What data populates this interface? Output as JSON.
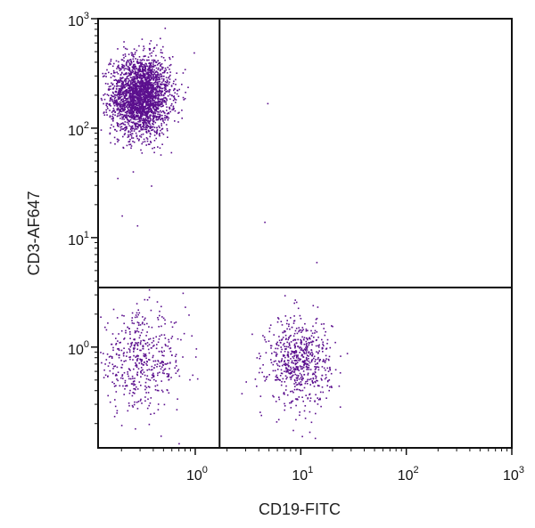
{
  "chart_data": {
    "type": "scatter",
    "title": "",
    "xlabel": "CD19-FITC",
    "ylabel": "CD3-AF647",
    "x_scale": "log",
    "y_scale": "log",
    "xlim": [
      0.12,
      1000
    ],
    "ylim": [
      0.12,
      1000
    ],
    "x_ticks": [
      {
        "value": 1,
        "base": "10",
        "exp": "0"
      },
      {
        "value": 10,
        "base": "10",
        "exp": "1"
      },
      {
        "value": 100,
        "base": "10",
        "exp": "2"
      },
      {
        "value": 1000,
        "base": "10",
        "exp": "3"
      }
    ],
    "y_ticks": [
      {
        "value": 1,
        "base": "10",
        "exp": "0"
      },
      {
        "value": 10,
        "base": "10",
        "exp": "1"
      },
      {
        "value": 100,
        "base": "10",
        "exp": "2"
      },
      {
        "value": 1000,
        "base": "10",
        "exp": "3"
      }
    ],
    "quadrant_gates": {
      "x": 1.7,
      "y": 3.5
    },
    "point_color": "#5b0f8e",
    "populations": [
      {
        "description_values": "CD3+ CD19- cluster",
        "center_x": 0.3,
        "center_y": 200,
        "spread_x_decades": 0.14,
        "spread_y_decades": 0.18,
        "approx_events": 2600
      },
      {
        "description_values": "CD3- CD19- cluster",
        "center_x": 0.3,
        "center_y": 0.75,
        "spread_x_decades": 0.22,
        "spread_y_decades": 0.22,
        "approx_events": 500
      },
      {
        "description_values": "CD3- CD19+ cluster",
        "center_x": 9.5,
        "center_y": 0.75,
        "spread_x_decades": 0.15,
        "spread_y_decades": 0.2,
        "approx_events": 650
      }
    ],
    "outliers": [
      {
        "x": 4.8,
        "y": 170
      },
      {
        "x": 4.5,
        "y": 14
      },
      {
        "x": 14,
        "y": 6
      },
      {
        "x": 0.2,
        "y": 16
      },
      {
        "x": 0.28,
        "y": 13
      },
      {
        "x": 0.38,
        "y": 30
      }
    ]
  }
}
